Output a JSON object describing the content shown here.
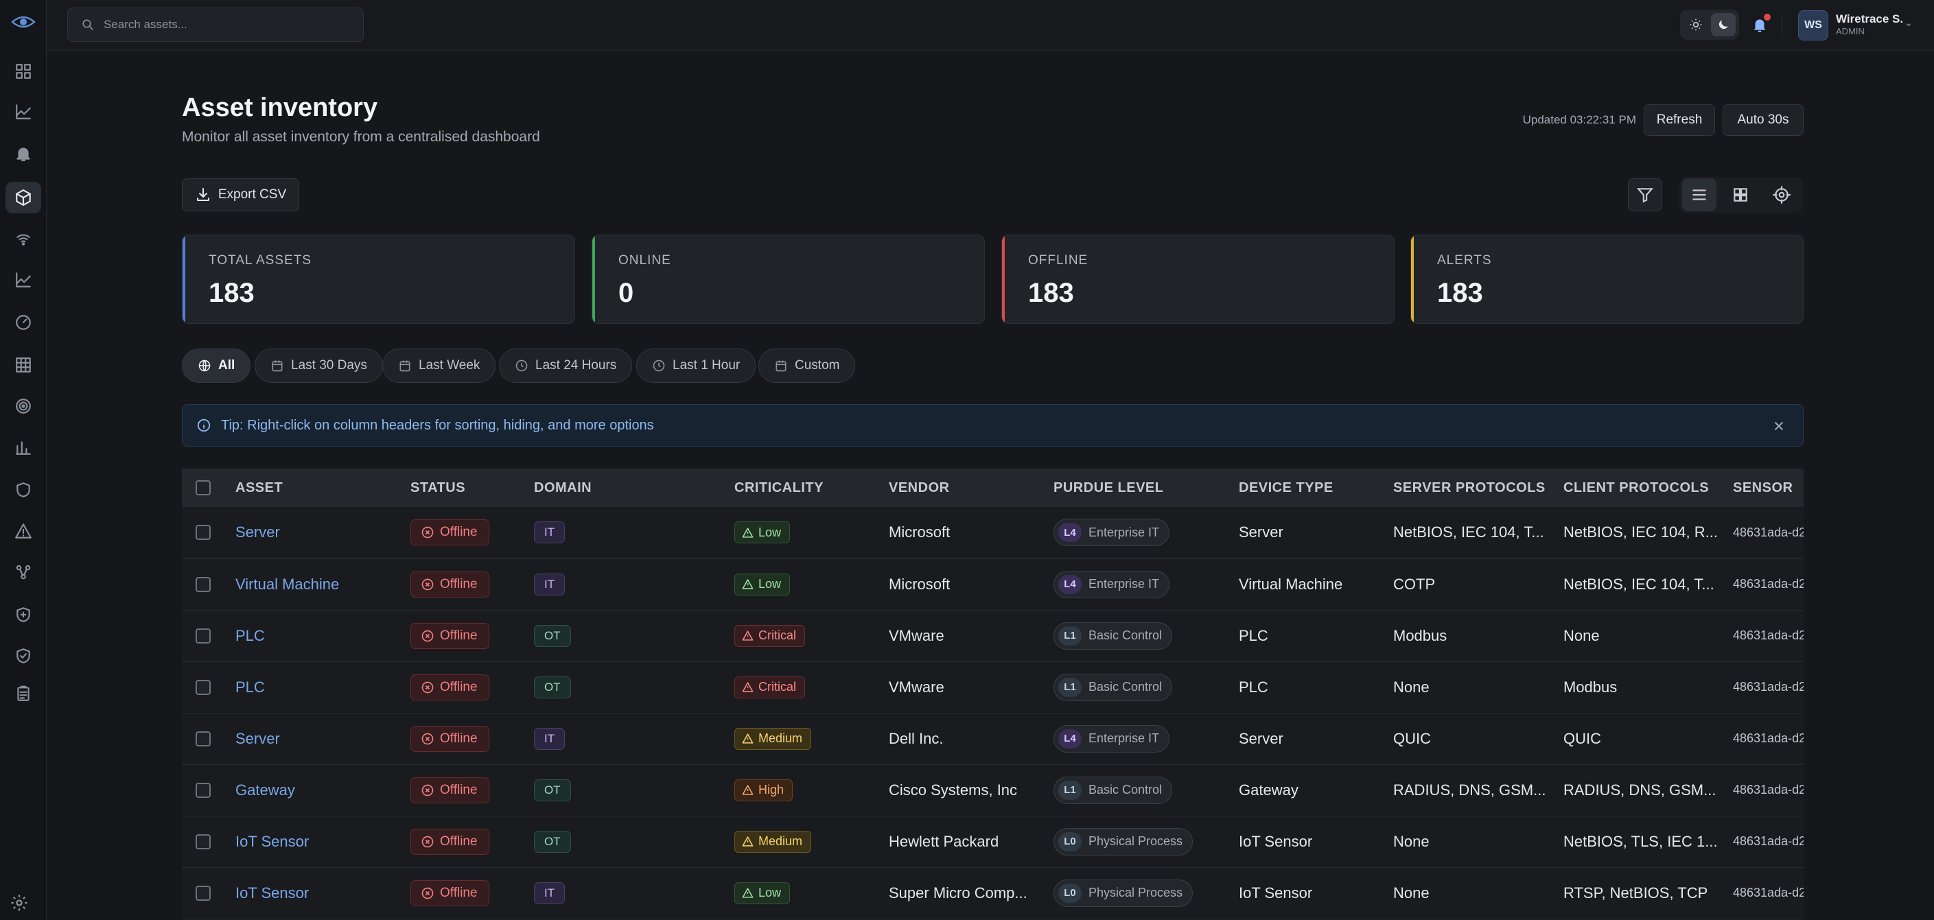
{
  "search": {
    "placeholder": "Search assets..."
  },
  "user": {
    "initials": "WS",
    "name": "Wiretrace S.",
    "role": "ADMIN"
  },
  "page": {
    "title": "Asset inventory",
    "subtitle": "Monitor all asset inventory from a centralised dashboard"
  },
  "toolbar": {
    "updated": "Updated 03:22:31 PM",
    "refresh_label": "Refresh",
    "auto_label": "Auto 30s",
    "export_label": "Export CSV"
  },
  "stats": [
    {
      "label": "TOTAL ASSETS",
      "value": "183",
      "color": "#4f7fe0"
    },
    {
      "label": "ONLINE",
      "value": "0",
      "color": "#3ea75a"
    },
    {
      "label": "OFFLINE",
      "value": "183",
      "color": "#d94a4f"
    },
    {
      "label": "ALERTS",
      "value": "183",
      "color": "#e0b030"
    }
  ],
  "filters": [
    {
      "label": "All",
      "icon": "globe-icon",
      "active": true
    },
    {
      "label": "Last 30 Days",
      "icon": "calendar-icon"
    },
    {
      "label": "Last Week",
      "icon": "calendar-icon"
    },
    {
      "label": "Last 24 Hours",
      "icon": "clock-icon"
    },
    {
      "label": "Last 1 Hour",
      "icon": "clock-icon"
    },
    {
      "label": "Custom",
      "icon": "calendar-icon"
    }
  ],
  "tip": {
    "text": "Tip: Right-click on column headers for sorting, hiding, and more options"
  },
  "table": {
    "headers": [
      "ASSET",
      "STATUS",
      "DOMAIN",
      "CRITICALITY",
      "VENDOR",
      "PURDUE LEVEL",
      "DEVICE TYPE",
      "SERVER PROTOCOLS",
      "CLIENT PROTOCOLS",
      "SENSOR"
    ],
    "rows": [
      {
        "asset": "Server",
        "status": "Offline",
        "domain": "IT",
        "criticality": "Low",
        "vendor": "Microsoft",
        "purdue_level": "L4",
        "purdue_name": "Enterprise IT",
        "device_type": "Server",
        "server_protocols": "NetBIOS, IEC 104, T...",
        "client_protocols": "NetBIOS, IEC 104, R...",
        "sensor": "48631ada-d2"
      },
      {
        "asset": "Virtual Machine",
        "status": "Offline",
        "domain": "IT",
        "criticality": "Low",
        "vendor": "Microsoft",
        "purdue_level": "L4",
        "purdue_name": "Enterprise IT",
        "device_type": "Virtual Machine",
        "server_protocols": "COTP",
        "client_protocols": "NetBIOS, IEC 104, T...",
        "sensor": "48631ada-d2"
      },
      {
        "asset": "PLC",
        "status": "Offline",
        "domain": "OT",
        "criticality": "Critical",
        "vendor": "VMware",
        "purdue_level": "L1",
        "purdue_name": "Basic Control",
        "device_type": "PLC",
        "server_protocols": "Modbus",
        "client_protocols": "None",
        "sensor": "48631ada-d2"
      },
      {
        "asset": "PLC",
        "status": "Offline",
        "domain": "OT",
        "criticality": "Critical",
        "vendor": "VMware",
        "purdue_level": "L1",
        "purdue_name": "Basic Control",
        "device_type": "PLC",
        "server_protocols": "None",
        "client_protocols": "Modbus",
        "sensor": "48631ada-d2"
      },
      {
        "asset": "Server",
        "status": "Offline",
        "domain": "IT",
        "criticality": "Medium",
        "vendor": "Dell Inc.",
        "purdue_level": "L4",
        "purdue_name": "Enterprise IT",
        "device_type": "Server",
        "server_protocols": "QUIC",
        "client_protocols": "QUIC",
        "sensor": "48631ada-d2"
      },
      {
        "asset": "Gateway",
        "status": "Offline",
        "domain": "OT",
        "criticality": "High",
        "vendor": "Cisco Systems, Inc",
        "purdue_level": "L1",
        "purdue_name": "Basic Control",
        "device_type": "Gateway",
        "server_protocols": "RADIUS, DNS, GSM...",
        "client_protocols": "RADIUS, DNS, GSM...",
        "sensor": "48631ada-d2"
      },
      {
        "asset": "IoT Sensor",
        "status": "Offline",
        "domain": "OT",
        "criticality": "Medium",
        "vendor": "Hewlett Packard",
        "purdue_level": "L0",
        "purdue_name": "Physical Process",
        "device_type": "IoT Sensor",
        "server_protocols": "None",
        "client_protocols": "NetBIOS, TLS, IEC 1...",
        "sensor": "48631ada-d2"
      },
      {
        "asset": "IoT Sensor",
        "status": "Offline",
        "domain": "IT",
        "criticality": "Low",
        "vendor": "Super Micro Comp...",
        "purdue_level": "L0",
        "purdue_name": "Physical Process",
        "device_type": "IoT Sensor",
        "server_protocols": "None",
        "client_protocols": "RTSP, NetBIOS, TCP",
        "sensor": "48631ada-d2"
      }
    ]
  }
}
